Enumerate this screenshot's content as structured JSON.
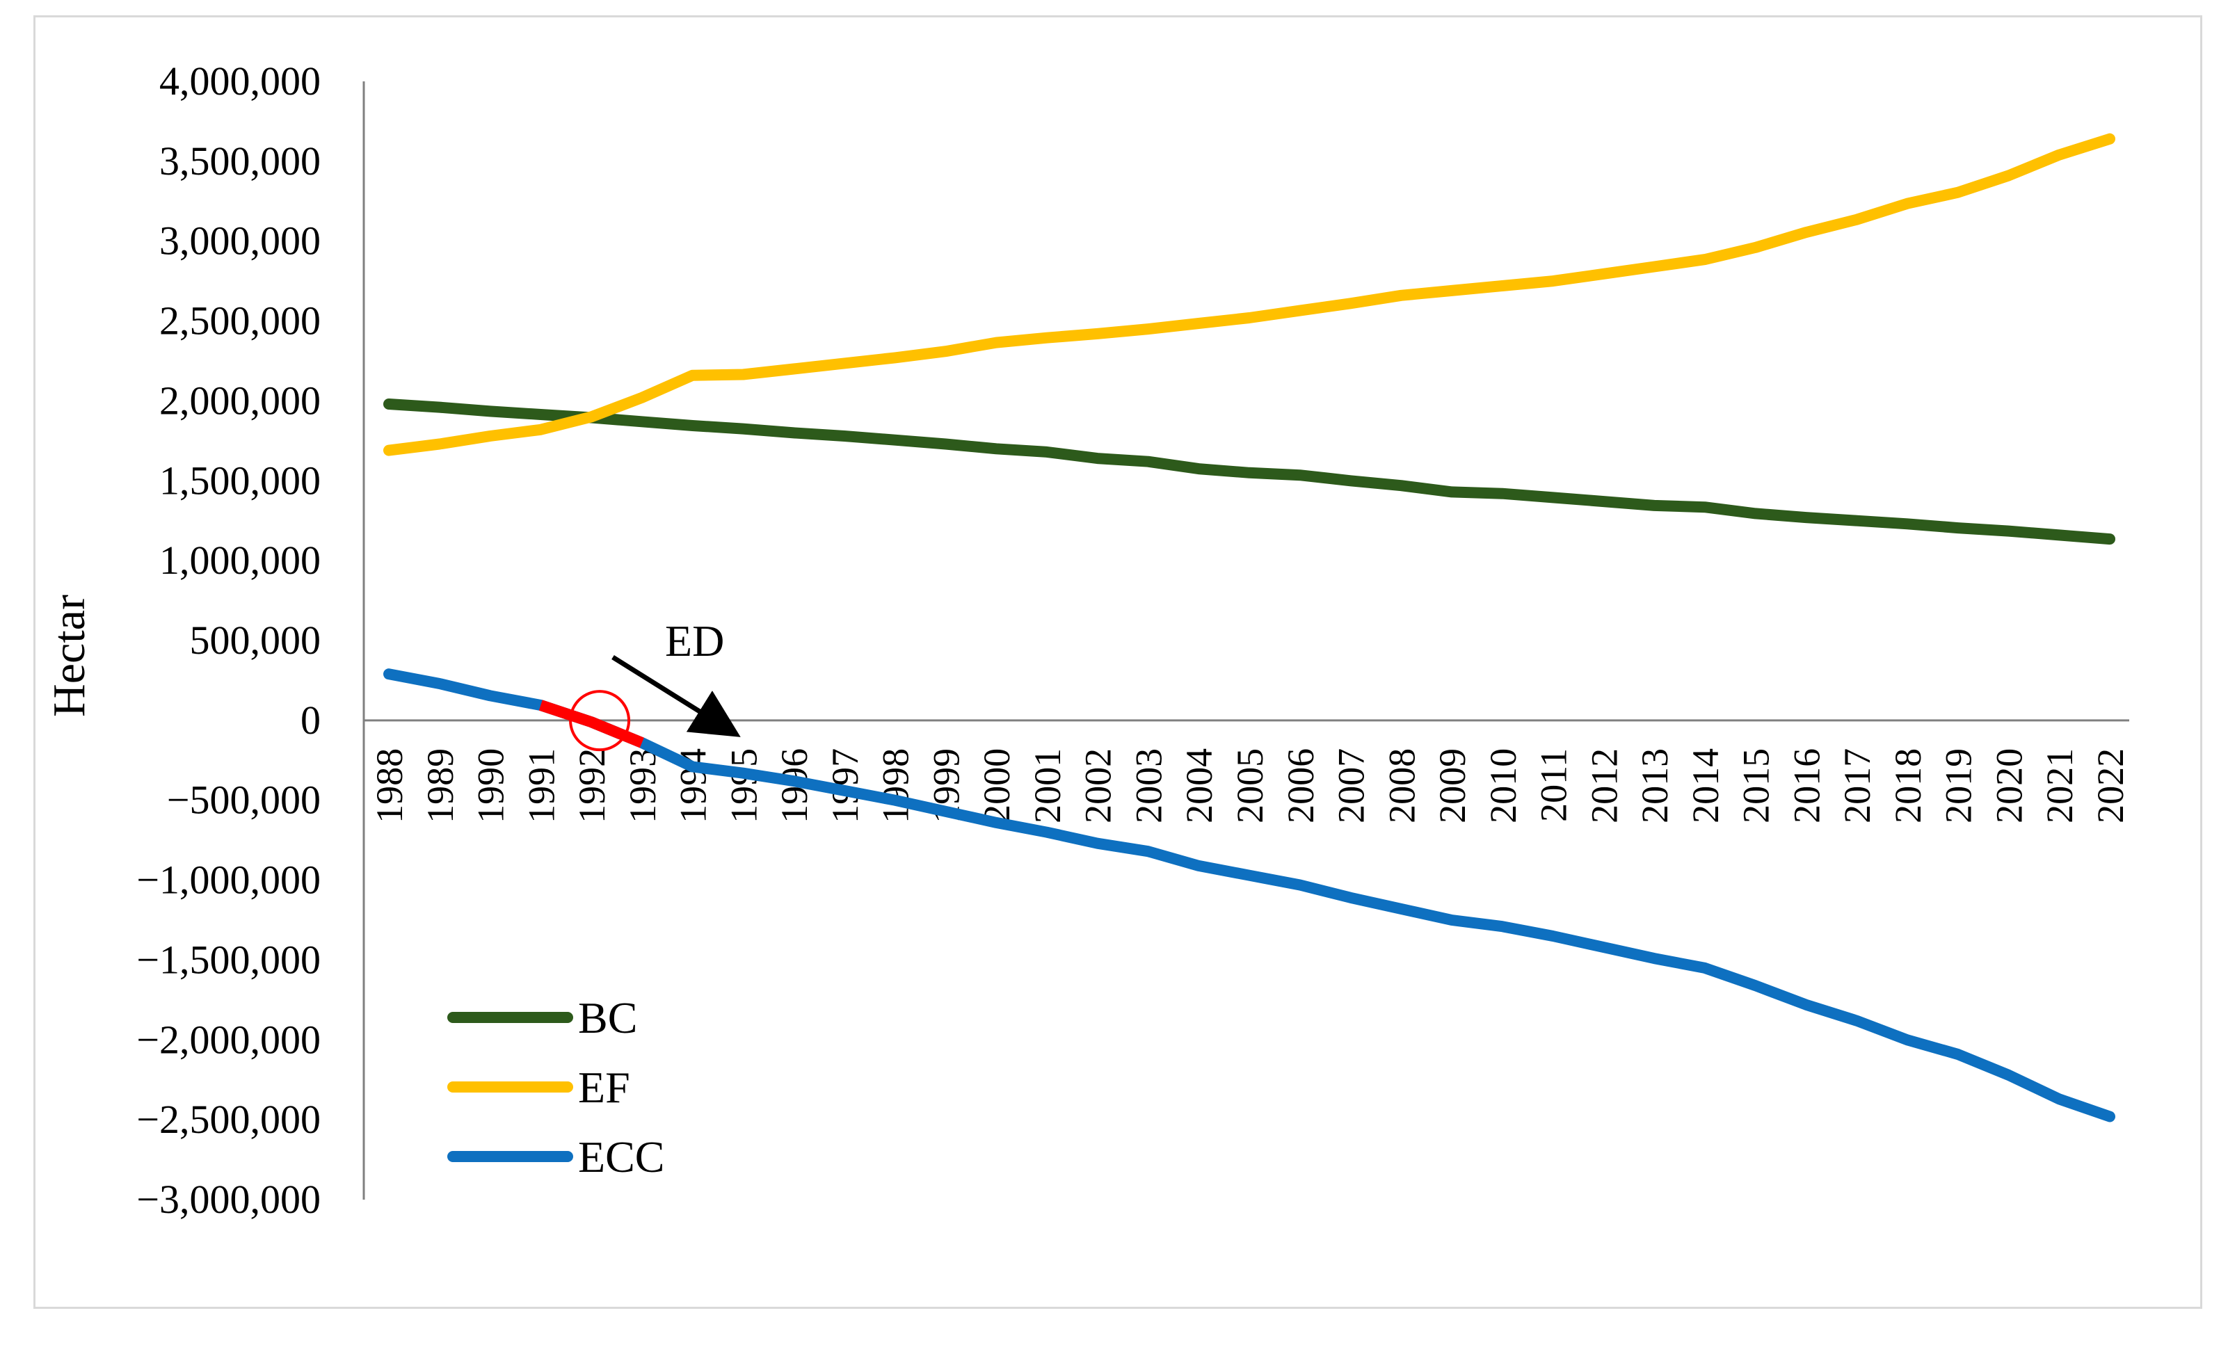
{
  "chart_data": {
    "type": "line",
    "title": "",
    "xlabel": "",
    "ylabel": "Hectar",
    "ylim": [
      -3000000,
      4000000
    ],
    "y_ticks": [
      4000000,
      3500000,
      3000000,
      2500000,
      2000000,
      1500000,
      1000000,
      500000,
      0,
      -500000,
      -1000000,
      -1500000,
      -2000000,
      -2500000,
      -3000000
    ],
    "y_tick_labels": [
      "4,000,000",
      "3,500,000",
      "3,000,000",
      "2,500,000",
      "2,000,000",
      "1,500,000",
      "1,000,000",
      "500,000",
      "0",
      "−500,000",
      "−1,000,000",
      "−1,500,000",
      "−2,000,000",
      "−2,500,000",
      "−3,000,000"
    ],
    "categories": [
      "1988",
      "1989",
      "1990",
      "1991",
      "1992",
      "1993",
      "1994",
      "1995",
      "1996",
      "1997",
      "1998",
      "1999",
      "2000",
      "2001",
      "2002",
      "2003",
      "2004",
      "2005",
      "2006",
      "2007",
      "2008",
      "2009",
      "2010",
      "2011",
      "2012",
      "2013",
      "2014",
      "2015",
      "2016",
      "2017",
      "2018",
      "2019",
      "2020",
      "2021",
      "2022"
    ],
    "series": [
      {
        "name": "BC",
        "color": "#2d5a1b",
        "values": [
          1980000,
          1960000,
          1935000,
          1915000,
          1895000,
          1870000,
          1845000,
          1825000,
          1800000,
          1780000,
          1755000,
          1730000,
          1700000,
          1680000,
          1640000,
          1620000,
          1575000,
          1550000,
          1535000,
          1500000,
          1470000,
          1430000,
          1420000,
          1395000,
          1370000,
          1345000,
          1335000,
          1295000,
          1270000,
          1250000,
          1230000,
          1205000,
          1185000,
          1160000,
          1135000
        ]
      },
      {
        "name": "EF",
        "color": "#ffc000",
        "values": [
          1690000,
          1730000,
          1780000,
          1820000,
          1900000,
          2020000,
          2160000,
          2165000,
          2200000,
          2235000,
          2270000,
          2310000,
          2365000,
          2395000,
          2420000,
          2450000,
          2485000,
          2520000,
          2565000,
          2610000,
          2660000,
          2690000,
          2720000,
          2750000,
          2795000,
          2840000,
          2885000,
          2960000,
          3055000,
          3135000,
          3235000,
          3305000,
          3410000,
          3540000,
          3640000
        ]
      },
      {
        "name": "ECC",
        "color": "#0e70c0",
        "highlight_color": "#ff0000",
        "highlight_range": [
          "1991",
          "1993"
        ],
        "values": [
          290000,
          230000,
          155000,
          95000,
          -10000,
          -140000,
          -290000,
          -330000,
          -380000,
          -440000,
          -500000,
          -570000,
          -640000,
          -700000,
          -770000,
          -820000,
          -910000,
          -970000,
          -1030000,
          -1110000,
          -1180000,
          -1250000,
          -1290000,
          -1350000,
          -1420000,
          -1490000,
          -1550000,
          -1660000,
          -1780000,
          -1880000,
          -2000000,
          -2090000,
          -2220000,
          -2370000,
          -2480000
        ]
      }
    ],
    "legend": {
      "position": "bottom-left",
      "entries": [
        "BC",
        "EF",
        "ECC"
      ]
    },
    "annotation": {
      "text": "ED",
      "arrow_color": "#000000",
      "circle_color": "#ff0000",
      "circle_at": "1992"
    },
    "grid": false
  }
}
